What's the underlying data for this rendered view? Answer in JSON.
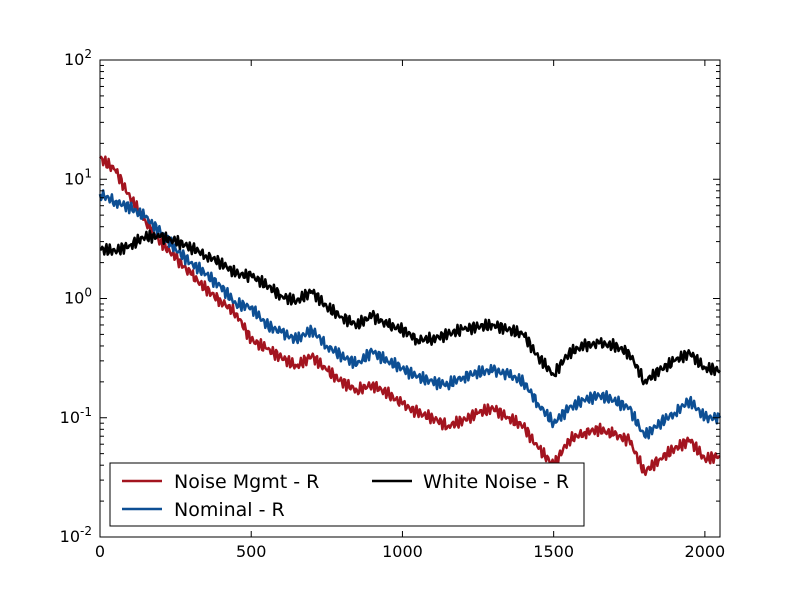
{
  "chart_data": {
    "type": "line",
    "title": "",
    "xlabel": "",
    "ylabel": "",
    "xlim": [
      0,
      2050
    ],
    "ylim": [
      0.01,
      100
    ],
    "y_scale": "log",
    "grid": false,
    "legend_position": "lower-left",
    "x_ticks": [
      {
        "value": 0,
        "label": "0"
      },
      {
        "value": 500,
        "label": "500"
      },
      {
        "value": 1000,
        "label": "1000"
      },
      {
        "value": 1500,
        "label": "1500"
      },
      {
        "value": 2000,
        "label": "2000"
      }
    ],
    "y_ticks": [
      {
        "value": 0.01,
        "base": "10",
        "exp": "-2"
      },
      {
        "value": 0.1,
        "base": "10",
        "exp": "-1"
      },
      {
        "value": 1,
        "base": "10",
        "exp": "0"
      },
      {
        "value": 10,
        "base": "10",
        "exp": "1"
      },
      {
        "value": 100,
        "base": "10",
        "exp": "2"
      }
    ],
    "x": [
      0,
      50,
      100,
      150,
      200,
      250,
      300,
      350,
      400,
      450,
      500,
      550,
      600,
      650,
      700,
      750,
      800,
      850,
      900,
      950,
      1000,
      1050,
      1100,
      1150,
      1200,
      1250,
      1300,
      1350,
      1400,
      1450,
      1500,
      1550,
      1600,
      1650,
      1700,
      1750,
      1800,
      1850,
      1900,
      1950,
      2000,
      2050
    ],
    "series": [
      {
        "name": "Noise Mgmt - R",
        "color": "#a3141f",
        "values": [
          15.0,
          12.0,
          7.0,
          4.5,
          3.0,
          2.2,
          1.6,
          1.2,
          0.95,
          0.75,
          0.45,
          0.38,
          0.32,
          0.27,
          0.33,
          0.25,
          0.2,
          0.17,
          0.19,
          0.16,
          0.13,
          0.11,
          0.1,
          0.085,
          0.095,
          0.11,
          0.12,
          0.1,
          0.085,
          0.055,
          0.04,
          0.065,
          0.075,
          0.08,
          0.072,
          0.065,
          0.035,
          0.045,
          0.055,
          0.065,
          0.045,
          0.048
        ]
      },
      {
        "name": "Nominal - R",
        "color": "#0d4f94",
        "values": [
          7.5,
          6.5,
          5.8,
          4.8,
          3.6,
          2.6,
          2.0,
          1.6,
          1.25,
          0.9,
          0.85,
          0.6,
          0.52,
          0.45,
          0.55,
          0.4,
          0.33,
          0.28,
          0.36,
          0.3,
          0.26,
          0.22,
          0.2,
          0.19,
          0.22,
          0.24,
          0.25,
          0.23,
          0.2,
          0.13,
          0.09,
          0.12,
          0.14,
          0.155,
          0.14,
          0.12,
          0.07,
          0.09,
          0.11,
          0.14,
          0.1,
          0.1
        ]
      },
      {
        "name": "White Noise - R",
        "color": "#000000",
        "values": [
          2.6,
          2.5,
          2.8,
          3.3,
          3.3,
          3.0,
          2.7,
          2.3,
          2.0,
          1.6,
          1.55,
          1.3,
          1.05,
          0.95,
          1.15,
          0.85,
          0.7,
          0.6,
          0.72,
          0.6,
          0.55,
          0.45,
          0.46,
          0.5,
          0.55,
          0.58,
          0.6,
          0.55,
          0.5,
          0.32,
          0.23,
          0.35,
          0.4,
          0.42,
          0.4,
          0.35,
          0.2,
          0.25,
          0.3,
          0.35,
          0.26,
          0.25
        ]
      }
    ]
  }
}
